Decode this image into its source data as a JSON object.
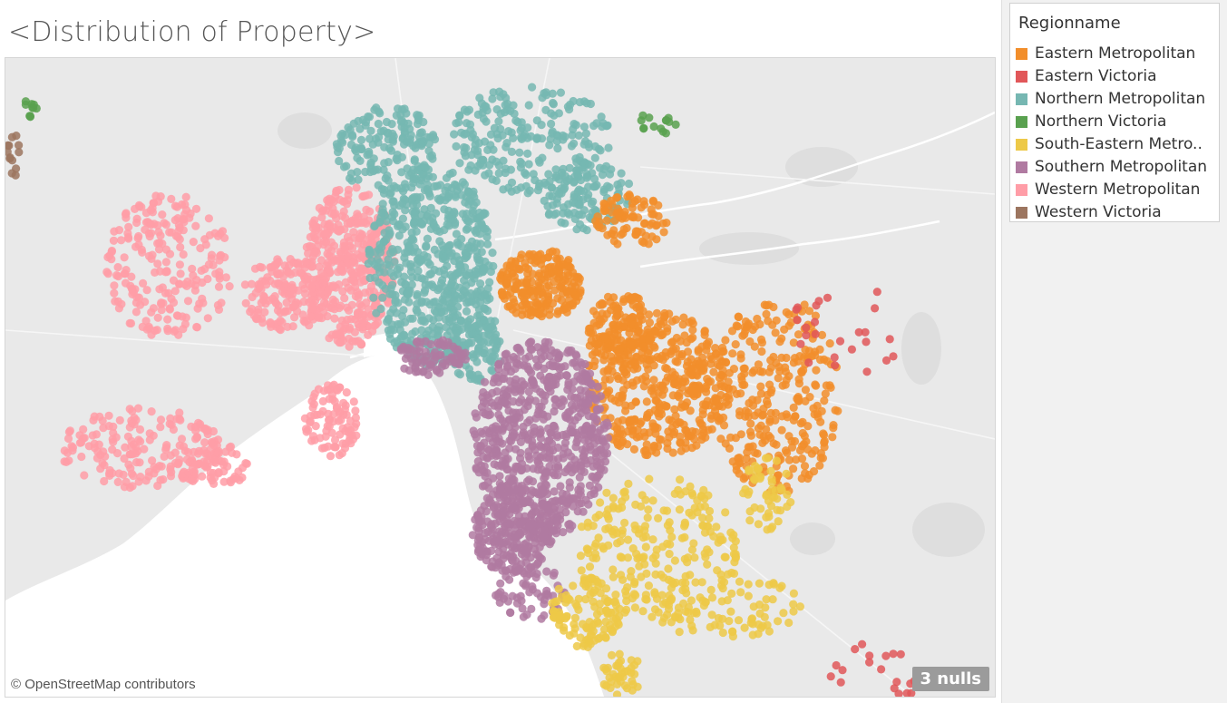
{
  "title": "<Distribution of Property>",
  "map": {
    "attribution": "© OpenStreetMap contributors",
    "nulls_badge": "3 nulls",
    "colors": {
      "land": "#e9e9e9",
      "water": "#ffffff",
      "roads": "#f7f7f7",
      "parks": "#dcdcdc"
    }
  },
  "legend": {
    "title": "Regionname",
    "items": [
      {
        "label": "Eastern Metropolitan",
        "color": "#f28e2b"
      },
      {
        "label": "Eastern Victoria",
        "color": "#e15759"
      },
      {
        "label": "Northern Metropolitan",
        "color": "#76b7b2"
      },
      {
        "label": "Northern Victoria",
        "color": "#59a14f"
      },
      {
        "label": "South-Eastern Metro..",
        "color": "#edc948"
      },
      {
        "label": "Southern Metropolitan",
        "color": "#b07aa1"
      },
      {
        "label": "Western Metropolitan",
        "color": "#ff9da7"
      },
      {
        "label": "Western Victoria",
        "color": "#9c755f"
      }
    ]
  }
}
